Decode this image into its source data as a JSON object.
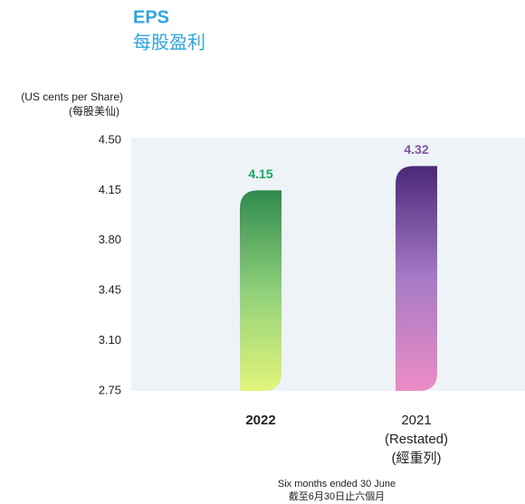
{
  "chart_data": {
    "type": "bar",
    "title": "EPS",
    "subtitle": "每股盈利",
    "ylabel": [
      "(US cents per Share)",
      "(每股美仙)"
    ],
    "xlabel": [
      "Six months ended 30 June",
      "截至6月30日止六個月"
    ],
    "categories": [
      "2022",
      "2021"
    ],
    "category_notes": [
      [],
      [
        "(Restated)",
        "(經重列)"
      ]
    ],
    "values": [
      4.15,
      4.32
    ],
    "colors": [
      "#17a862",
      "#7d53a6"
    ],
    "ylim": [
      2.75,
      4.5
    ],
    "yticks": [
      2.75,
      {
        "value": 3.1,
        "label": "3.10"
      },
      3.45,
      {
        "value": 3.8,
        "label": "3.80"
      },
      4.15,
      {
        "value": 4.5,
        "label": "4.50"
      }
    ],
    "grid": false
  }
}
